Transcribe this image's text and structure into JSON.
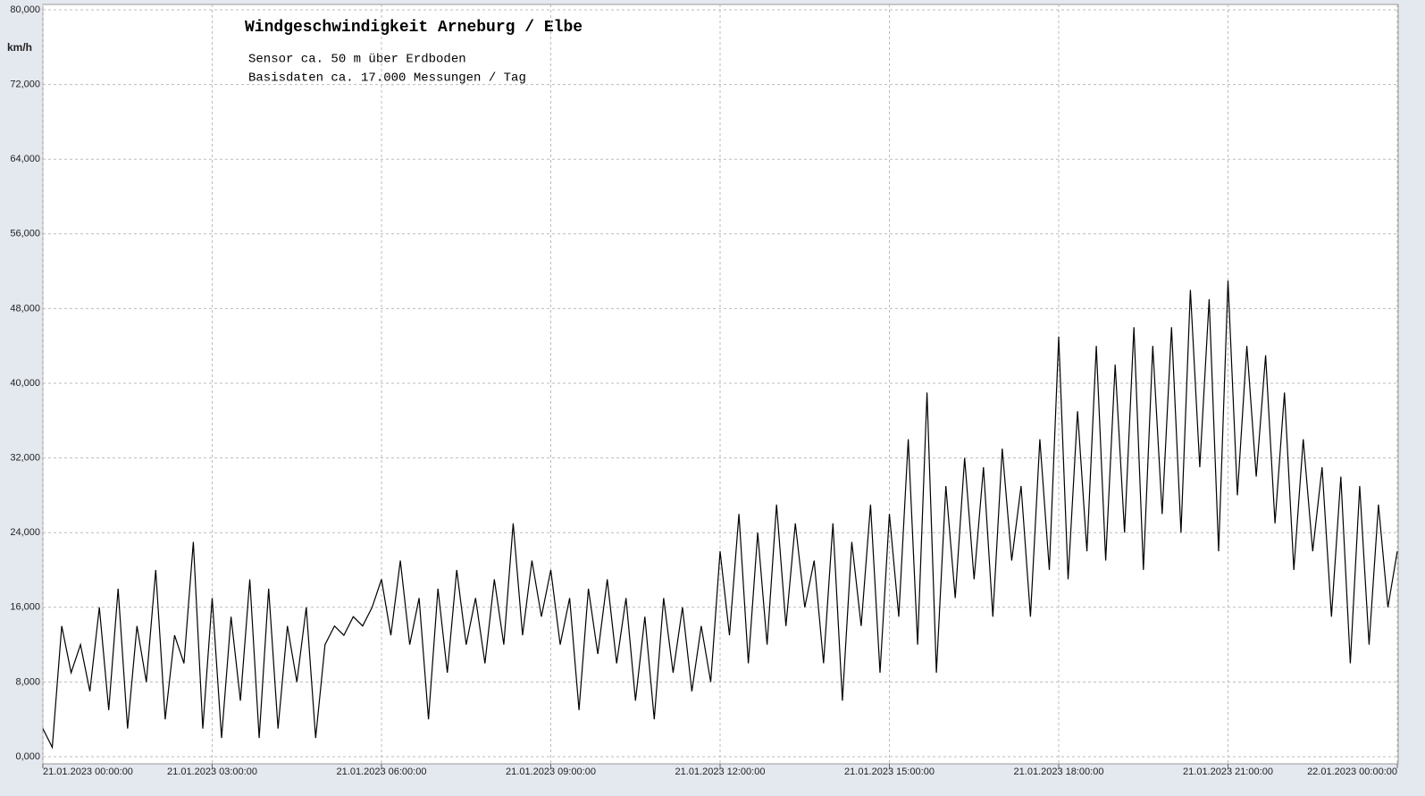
{
  "chart_data": {
    "type": "line",
    "title": "Windgeschwindigkeit  Arneburg / Elbe",
    "subtitle": [
      "Sensor ca. 50 m über Erdboden",
      "Basisdaten ca. 17.000 Messungen / Tag"
    ],
    "y_label": "km/h",
    "x": [
      "21.01.2023 00:00:00",
      "21.01.2023 00:10:00",
      "21.01.2023 00:20:00",
      "21.01.2023 00:30:00",
      "21.01.2023 00:40:00",
      "21.01.2023 00:50:00",
      "21.01.2023 01:00:00",
      "21.01.2023 01:10:00",
      "21.01.2023 01:20:00",
      "21.01.2023 01:30:00",
      "21.01.2023 01:40:00",
      "21.01.2023 01:50:00",
      "21.01.2023 02:00:00",
      "21.01.2023 02:10:00",
      "21.01.2023 02:20:00",
      "21.01.2023 02:30:00",
      "21.01.2023 02:40:00",
      "21.01.2023 02:50:00",
      "21.01.2023 03:00:00",
      "21.01.2023 03:10:00",
      "21.01.2023 03:20:00",
      "21.01.2023 03:30:00",
      "21.01.2023 03:40:00",
      "21.01.2023 03:50:00",
      "21.01.2023 04:00:00",
      "21.01.2023 04:10:00",
      "21.01.2023 04:20:00",
      "21.01.2023 04:30:00",
      "21.01.2023 04:40:00",
      "21.01.2023 04:50:00",
      "21.01.2023 05:00:00",
      "21.01.2023 05:10:00",
      "21.01.2023 05:20:00",
      "21.01.2023 05:30:00",
      "21.01.2023 05:40:00",
      "21.01.2023 05:50:00",
      "21.01.2023 06:00:00",
      "21.01.2023 06:10:00",
      "21.01.2023 06:20:00",
      "21.01.2023 06:30:00",
      "21.01.2023 06:40:00",
      "21.01.2023 06:50:00",
      "21.01.2023 07:00:00",
      "21.01.2023 07:10:00",
      "21.01.2023 07:20:00",
      "21.01.2023 07:30:00",
      "21.01.2023 07:40:00",
      "21.01.2023 07:50:00",
      "21.01.2023 08:00:00",
      "21.01.2023 08:10:00",
      "21.01.2023 08:20:00",
      "21.01.2023 08:30:00",
      "21.01.2023 08:40:00",
      "21.01.2023 08:50:00",
      "21.01.2023 09:00:00",
      "21.01.2023 09:10:00",
      "21.01.2023 09:20:00",
      "21.01.2023 09:30:00",
      "21.01.2023 09:40:00",
      "21.01.2023 09:50:00",
      "21.01.2023 10:00:00",
      "21.01.2023 10:10:00",
      "21.01.2023 10:20:00",
      "21.01.2023 10:30:00",
      "21.01.2023 10:40:00",
      "21.01.2023 10:50:00",
      "21.01.2023 11:00:00",
      "21.01.2023 11:10:00",
      "21.01.2023 11:20:00",
      "21.01.2023 11:30:00",
      "21.01.2023 11:40:00",
      "21.01.2023 11:50:00",
      "21.01.2023 12:00:00",
      "21.01.2023 12:10:00",
      "21.01.2023 12:20:00",
      "21.01.2023 12:30:00",
      "21.01.2023 12:40:00",
      "21.01.2023 12:50:00",
      "21.01.2023 13:00:00",
      "21.01.2023 13:10:00",
      "21.01.2023 13:20:00",
      "21.01.2023 13:30:00",
      "21.01.2023 13:40:00",
      "21.01.2023 13:50:00",
      "21.01.2023 14:00:00",
      "21.01.2023 14:10:00",
      "21.01.2023 14:20:00",
      "21.01.2023 14:30:00",
      "21.01.2023 14:40:00",
      "21.01.2023 14:50:00",
      "21.01.2023 15:00:00",
      "21.01.2023 15:10:00",
      "21.01.2023 15:20:00",
      "21.01.2023 15:30:00",
      "21.01.2023 15:40:00",
      "21.01.2023 15:50:00",
      "21.01.2023 16:00:00",
      "21.01.2023 16:10:00",
      "21.01.2023 16:20:00",
      "21.01.2023 16:30:00",
      "21.01.2023 16:40:00",
      "21.01.2023 16:50:00",
      "21.01.2023 17:00:00",
      "21.01.2023 17:10:00",
      "21.01.2023 17:20:00",
      "21.01.2023 17:30:00",
      "21.01.2023 17:40:00",
      "21.01.2023 17:50:00",
      "21.01.2023 18:00:00",
      "21.01.2023 18:10:00",
      "21.01.2023 18:20:00",
      "21.01.2023 18:30:00",
      "21.01.2023 18:40:00",
      "21.01.2023 18:50:00",
      "21.01.2023 19:00:00",
      "21.01.2023 19:10:00",
      "21.01.2023 19:20:00",
      "21.01.2023 19:30:00",
      "21.01.2023 19:40:00",
      "21.01.2023 19:50:00",
      "21.01.2023 20:00:00",
      "21.01.2023 20:10:00",
      "21.01.2023 20:20:00",
      "21.01.2023 20:30:00",
      "21.01.2023 20:40:00",
      "21.01.2023 20:50:00",
      "21.01.2023 21:00:00",
      "21.01.2023 21:10:00",
      "21.01.2023 21:20:00",
      "21.01.2023 21:30:00",
      "21.01.2023 21:40:00",
      "21.01.2023 21:50:00",
      "21.01.2023 22:00:00",
      "21.01.2023 22:10:00",
      "21.01.2023 22:20:00",
      "21.01.2023 22:30:00",
      "21.01.2023 22:40:00",
      "21.01.2023 22:50:00",
      "21.01.2023 23:00:00",
      "21.01.2023 23:10:00",
      "21.01.2023 23:20:00",
      "21.01.2023 23:30:00",
      "21.01.2023 23:40:00",
      "21.01.2023 23:50:00",
      "22.01.2023 00:00:00"
    ],
    "series": [
      {
        "color": "#000000",
        "values": [
          3,
          1,
          14,
          9,
          12,
          7,
          16,
          5,
          18,
          3,
          14,
          8,
          20,
          4,
          13,
          10,
          23,
          3,
          17,
          2,
          15,
          6,
          19,
          2,
          18,
          3,
          14,
          8,
          16,
          2,
          12,
          14,
          13,
          15,
          14,
          16,
          19,
          13,
          21,
          12,
          17,
          4,
          18,
          9,
          20,
          12,
          17,
          10,
          19,
          12,
          25,
          13,
          21,
          15,
          20,
          12,
          17,
          5,
          18,
          11,
          19,
          10,
          17,
          6,
          15,
          4,
          17,
          9,
          16,
          7,
          14,
          8,
          22,
          13,
          26,
          10,
          24,
          12,
          27,
          14,
          25,
          16,
          21,
          10,
          25,
          6,
          23,
          14,
          27,
          9,
          26,
          15,
          34,
          12,
          39,
          9,
          29,
          17,
          32,
          19,
          31,
          15,
          33,
          21,
          29,
          15,
          34,
          20,
          45,
          19,
          37,
          22,
          44,
          21,
          42,
          24,
          46,
          20,
          44,
          26,
          46,
          24,
          50,
          31,
          49,
          22,
          51,
          28,
          44,
          30,
          43,
          25,
          39,
          20,
          34,
          22,
          31,
          15,
          30,
          10,
          29,
          12,
          27,
          16,
          22
        ]
      }
    ],
    "xlim": [
      "21.01.2023 00:00:00",
      "22.01.2023 00:00:00"
    ],
    "xticks": [
      "21.01.2023 00:00:00",
      "21.01.2023 03:00:00",
      "21.01.2023 06:00:00",
      "21.01.2023 09:00:00",
      "21.01.2023 12:00:00",
      "21.01.2023 15:00:00",
      "21.01.2023 18:00:00",
      "21.01.2023 21:00:00",
      "22.01.2023 00:00:00"
    ],
    "ylim": [
      0,
      80
    ],
    "yticks": [
      {
        "value": 0,
        "label": "0,000"
      },
      {
        "value": 8,
        "label": "8,000"
      },
      {
        "value": 16,
        "label": "16,000"
      },
      {
        "value": 24,
        "label": "24,000"
      },
      {
        "value": 32,
        "label": "32,000"
      },
      {
        "value": 40,
        "label": "40,000"
      },
      {
        "value": 48,
        "label": "48,000"
      },
      {
        "value": 56,
        "label": "56,000"
      },
      {
        "value": 64,
        "label": "64,000"
      },
      {
        "value": 72,
        "label": "72,000"
      },
      {
        "value": 80,
        "label": "80,000"
      }
    ],
    "grid": true
  }
}
